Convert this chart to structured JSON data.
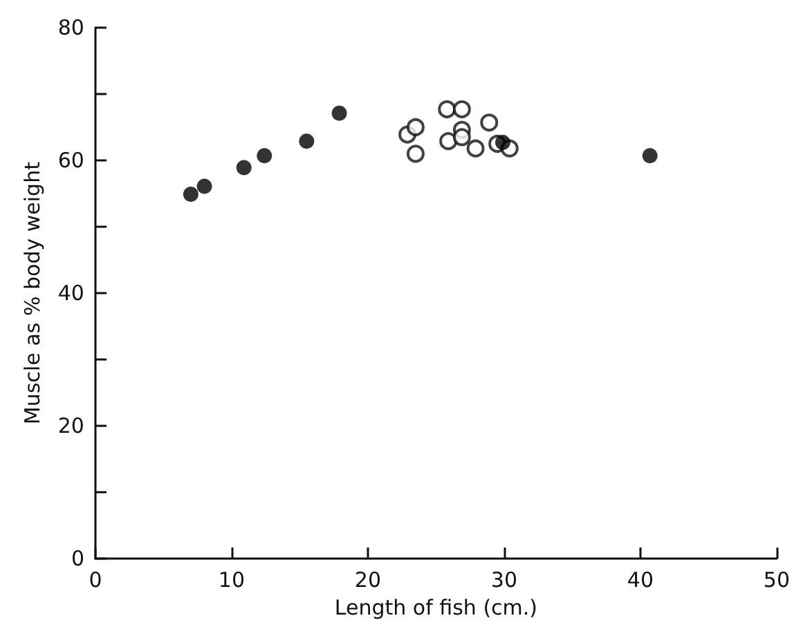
{
  "chart_data": {
    "type": "scatter",
    "xlabel": "Length of fish (cm.)",
    "ylabel": "Muscle as % body weight",
    "xlim": [
      0,
      50
    ],
    "ylim": [
      0,
      80
    ],
    "xticks": [
      0,
      10,
      20,
      30,
      40,
      50
    ],
    "yticks": [
      0,
      {
        "value": 10,
        "label": null
      },
      20,
      {
        "value": 30,
        "label": null
      },
      40,
      {
        "value": 50,
        "label": null
      },
      60,
      {
        "value": 70,
        "label": null
      },
      80
    ],
    "grid": false,
    "marker": "circle",
    "series": [
      {
        "color": "#000000",
        "x": [
          7.0,
          8.0,
          10.9,
          12.4,
          15.5,
          17.9,
          29.9,
          40.7
        ],
        "values": [
          54.9,
          56.1,
          58.9,
          60.7,
          62.9,
          67.1,
          62.7,
          60.7
        ]
      },
      {
        "color": "#ffffff",
        "x": [
          22.9,
          23.5,
          23.5,
          25.8,
          26.9,
          25.9,
          26.9,
          26.9,
          27.9,
          28.9,
          29.5,
          30.4
        ],
        "values": [
          63.9,
          65.0,
          61.0,
          67.7,
          67.7,
          62.9,
          64.6,
          63.5,
          61.8,
          65.7,
          62.5,
          61.8
        ]
      }
    ]
  }
}
